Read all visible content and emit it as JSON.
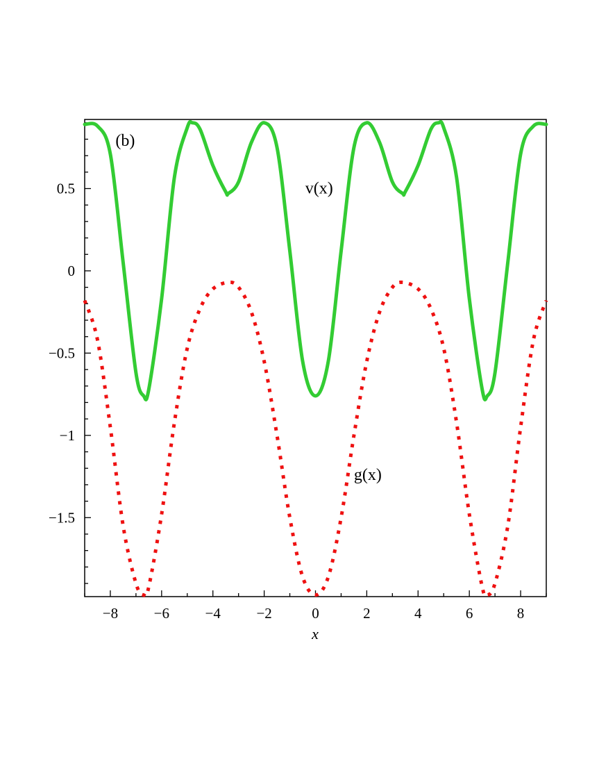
{
  "chart_data": {
    "type": "line",
    "title": "",
    "xlabel": "x",
    "ylabel": "",
    "xlim": [
      -9,
      9
    ],
    "ylim": [
      -1.98,
      0.92
    ],
    "xticks": [
      -8,
      -6,
      -4,
      -2,
      0,
      2,
      4,
      6,
      8
    ],
    "xtick_labels": [
      "−8",
      "−6",
      "−4",
      "−2",
      "0",
      "2",
      "4",
      "6",
      "8"
    ],
    "yticks": [
      0.5,
      0,
      -0.5,
      -1,
      -1.5
    ],
    "ytick_labels": [
      "0.5",
      "0",
      "−0.5",
      "−1",
      "−1.5"
    ],
    "grid": false,
    "annotations": [
      {
        "text": "(b)",
        "x": -7.8,
        "y": 0.76
      },
      {
        "text": "v(x)",
        "x": -0.4,
        "y": 0.47
      },
      {
        "text": "g(x)",
        "x": 1.5,
        "y": -1.27
      }
    ],
    "series": [
      {
        "label": "v(x)",
        "color": "#33cc33",
        "style": "solid",
        "x": [
          -9.0,
          -8.5,
          -8.0,
          -7.5,
          -7.0,
          -6.7,
          -6.5,
          -6.0,
          -5.5,
          -5.0,
          -4.8,
          -4.5,
          -4.0,
          -3.5,
          -3.4,
          -3.0,
          -2.5,
          -2.0,
          -1.5,
          -1.0,
          -0.5,
          0.0,
          0.5,
          1.0,
          1.5,
          2.0,
          2.5,
          3.0,
          3.4,
          3.5,
          4.0,
          4.5,
          4.8,
          5.0,
          5.5,
          6.0,
          6.5,
          6.7,
          7.0,
          7.5,
          8.0,
          8.5,
          9.0
        ],
        "y": [
          0.89,
          0.88,
          0.71,
          0.05,
          -0.62,
          -0.76,
          -0.72,
          -0.17,
          0.57,
          0.87,
          0.9,
          0.86,
          0.64,
          0.48,
          0.47,
          0.54,
          0.78,
          0.9,
          0.75,
          0.12,
          -0.55,
          -0.76,
          -0.55,
          0.12,
          0.75,
          0.9,
          0.78,
          0.54,
          0.47,
          0.48,
          0.64,
          0.86,
          0.9,
          0.87,
          0.57,
          -0.17,
          -0.72,
          -0.76,
          -0.62,
          0.05,
          0.71,
          0.88,
          0.89
        ]
      },
      {
        "label": "g(x)",
        "color": "#ee1111",
        "style": "dotted",
        "x": [
          -9.0,
          -8.5,
          -8.0,
          -7.5,
          -7.0,
          -6.7,
          -6.5,
          -6.0,
          -5.5,
          -5.0,
          -4.5,
          -4.0,
          -3.4,
          -3.0,
          -2.5,
          -2.0,
          -1.5,
          -1.0,
          -0.5,
          0.0,
          0.5,
          1.0,
          1.5,
          2.0,
          2.5,
          3.0,
          3.4,
          4.0,
          4.5,
          5.0,
          5.5,
          6.0,
          6.5,
          6.7,
          7.0,
          7.5,
          8.0,
          8.5,
          9.0
        ],
        "y": [
          -0.18,
          -0.42,
          -0.95,
          -1.55,
          -1.9,
          -1.97,
          -1.92,
          -1.48,
          -0.92,
          -0.47,
          -0.23,
          -0.11,
          -0.07,
          -0.1,
          -0.25,
          -0.55,
          -1.0,
          -1.5,
          -1.86,
          -1.97,
          -1.86,
          -1.5,
          -1.0,
          -0.55,
          -0.25,
          -0.1,
          -0.07,
          -0.11,
          -0.23,
          -0.47,
          -0.92,
          -1.48,
          -1.92,
          -1.97,
          -1.9,
          -1.55,
          -0.95,
          -0.42,
          -0.18
        ]
      }
    ]
  }
}
